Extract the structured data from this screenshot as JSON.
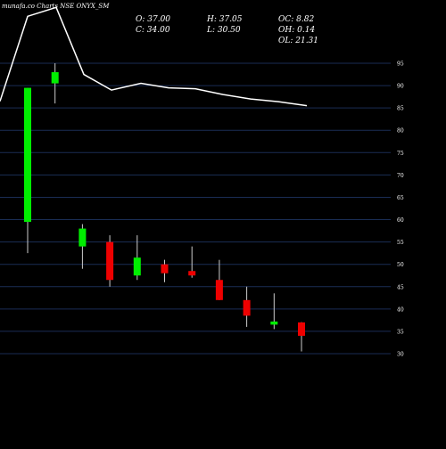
{
  "header": {
    "title": "munafa.co Charts NSE ONYX_SM",
    "open": "O: 37.00",
    "close": "C: 34.00",
    "high": "H: 37.05",
    "low": "L: 30.50",
    "oc": "OC: 8.82",
    "oh": "OH: 0.14",
    "ol": "OL: 21.31"
  },
  "colors": {
    "background": "#000000",
    "grid": "#1a2d55",
    "up": "#00ee00",
    "down": "#ee0000",
    "line": "#ffffff",
    "text": "#ffffff"
  },
  "chart_data": {
    "type": "candlestick",
    "title": "munafa.co Charts NSE ONYX_SM",
    "y_ticks": [
      95,
      90,
      85,
      80,
      75,
      70,
      65,
      60,
      55,
      50,
      45,
      40,
      35,
      30
    ],
    "ylim": [
      28,
      108
    ],
    "grid": true,
    "candles": [
      {
        "open": 59.5,
        "high": 89.5,
        "low": 52.5,
        "close": 89.5
      },
      {
        "open": 90.5,
        "high": 95,
        "low": 86,
        "close": 93
      },
      {
        "open": 54,
        "high": 59,
        "low": 49,
        "close": 58
      },
      {
        "open": 55,
        "high": 56.5,
        "low": 45,
        "close": 46.5
      },
      {
        "open": 47.5,
        "high": 56.5,
        "low": 46.5,
        "close": 51.5
      },
      {
        "open": 50,
        "high": 51,
        "low": 46,
        "close": 48
      },
      {
        "open": 48.5,
        "high": 54,
        "low": 47,
        "close": 47.5
      },
      {
        "open": 46.5,
        "high": 51,
        "low": 42,
        "close": 42
      },
      {
        "open": 42,
        "high": 45,
        "low": 36,
        "close": 38.5
      },
      {
        "open": 36.5,
        "high": 43.5,
        "low": 35.5,
        "close": 37.2
      },
      {
        "open": 37,
        "high": 37.05,
        "low": 30.5,
        "close": 34
      }
    ],
    "line_series": [
      86.5,
      105.5,
      107.5,
      92.5,
      89,
      90.5,
      89.5,
      89.3,
      88,
      87,
      86.4,
      85.5
    ]
  }
}
